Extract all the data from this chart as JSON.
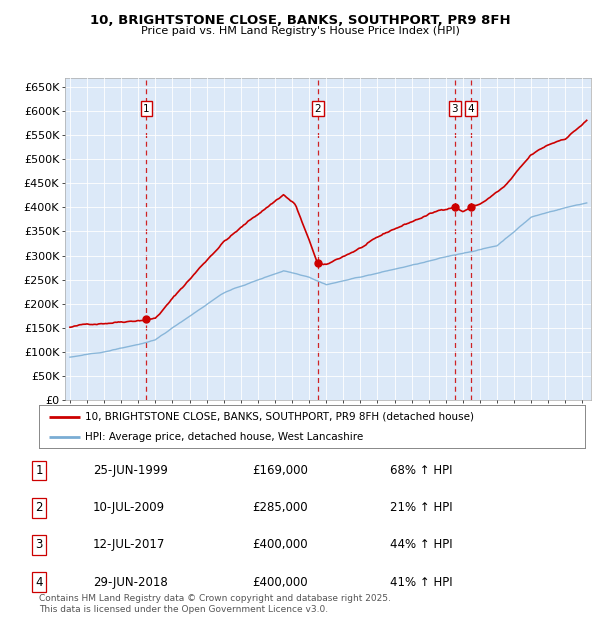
{
  "title": "10, BRIGHTSTONE CLOSE, BANKS, SOUTHPORT, PR9 8FH",
  "subtitle": "Price paid vs. HM Land Registry's House Price Index (HPI)",
  "xlim": [
    1994.7,
    2025.5
  ],
  "ylim": [
    0,
    670000
  ],
  "yticks": [
    0,
    50000,
    100000,
    150000,
    200000,
    250000,
    300000,
    350000,
    400000,
    450000,
    500000,
    550000,
    600000,
    650000
  ],
  "ytick_labels": [
    "£0",
    "£50K",
    "£100K",
    "£150K",
    "£200K",
    "£250K",
    "£300K",
    "£350K",
    "£400K",
    "£450K",
    "£500K",
    "£550K",
    "£600K",
    "£650K"
  ],
  "plot_bg_color": "#dce9f8",
  "red_line_color": "#cc0000",
  "blue_line_color": "#7aadd4",
  "sale_dates": [
    1999.48,
    2009.52,
    2017.53,
    2018.49
  ],
  "sale_prices": [
    169000,
    285000,
    400000,
    400000
  ],
  "sale_labels": [
    "1",
    "2",
    "3",
    "4"
  ],
  "vline_color": "#cc0000",
  "legend_entries": [
    "10, BRIGHTSTONE CLOSE, BANKS, SOUTHPORT, PR9 8FH (detached house)",
    "HPI: Average price, detached house, West Lancashire"
  ],
  "table_data": [
    [
      "1",
      "25-JUN-1999",
      "£169,000",
      "68% ↑ HPI"
    ],
    [
      "2",
      "10-JUL-2009",
      "£285,000",
      "21% ↑ HPI"
    ],
    [
      "3",
      "12-JUL-2017",
      "£400,000",
      "44% ↑ HPI"
    ],
    [
      "4",
      "29-JUN-2018",
      "£400,000",
      "41% ↑ HPI"
    ]
  ],
  "footer": "Contains HM Land Registry data © Crown copyright and database right 2025.\nThis data is licensed under the Open Government Licence v3.0."
}
